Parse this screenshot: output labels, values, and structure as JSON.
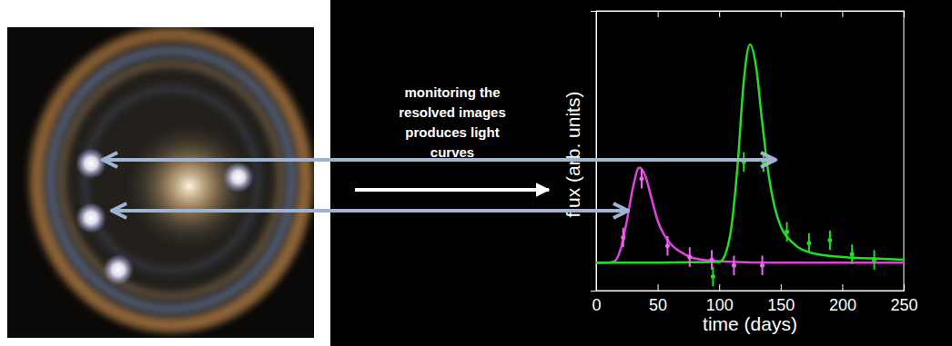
{
  "chart_data": {
    "type": "line",
    "annotations": [
      "monitoring the resolved images produces light curves"
    ],
    "x_label": "time (days)",
    "y_label": "flux (arb. units)",
    "xlim": [
      0,
      250
    ],
    "xticks": [
      0,
      50,
      100,
      150,
      200,
      250
    ],
    "ylim": [
      0,
      10
    ],
    "tick_labels": "x",
    "grid": false,
    "series": [
      {
        "type": "line",
        "color": "#dd44dd",
        "line_style": "solid",
        "x": [
          0,
          10,
          15,
          20,
          25,
          30,
          35,
          40,
          45,
          50,
          60,
          70,
          80,
          100,
          150,
          200,
          250
        ],
        "values": [
          1.0,
          1.0,
          1.05,
          1.5,
          2.5,
          3.7,
          4.4,
          4.1,
          3.3,
          2.5,
          1.7,
          1.35,
          1.15,
          1.05,
          1.0,
          1.0,
          1.0
        ]
      },
      {
        "type": "line",
        "color": "#22dd22",
        "line_style": "solid",
        "x": [
          0,
          50,
          100,
          105,
          110,
          115,
          120,
          125,
          130,
          135,
          140,
          145,
          150,
          160,
          175,
          200,
          225,
          250
        ],
        "values": [
          1.0,
          1.0,
          1.02,
          1.3,
          2.3,
          4.5,
          7.5,
          8.8,
          8.0,
          6.0,
          4.2,
          3.0,
          2.3,
          1.7,
          1.35,
          1.2,
          1.15,
          1.1
        ]
      },
      {
        "type": "scatter",
        "color": "#ee66ee",
        "marker": "point",
        "x": [
          22,
          37,
          58,
          76,
          94,
          112,
          135
        ],
        "values": [
          1.9,
          4.0,
          1.6,
          1.2,
          1.1,
          0.9,
          0.9
        ],
        "errors": [
          0.35,
          0.35,
          0.35,
          0.35,
          0.35,
          0.35,
          0.35
        ]
      },
      {
        "type": "scatter",
        "color": "#22dd22",
        "marker": "point",
        "x": [
          95,
          120,
          136,
          155,
          173,
          190,
          208,
          226
        ],
        "values": [
          0.5,
          4.6,
          4.6,
          2.1,
          1.7,
          1.8,
          1.3,
          1.1
        ],
        "errors": [
          0.35,
          0.35,
          0.35,
          0.35,
          0.35,
          0.35,
          0.35,
          0.35
        ]
      }
    ]
  }
}
